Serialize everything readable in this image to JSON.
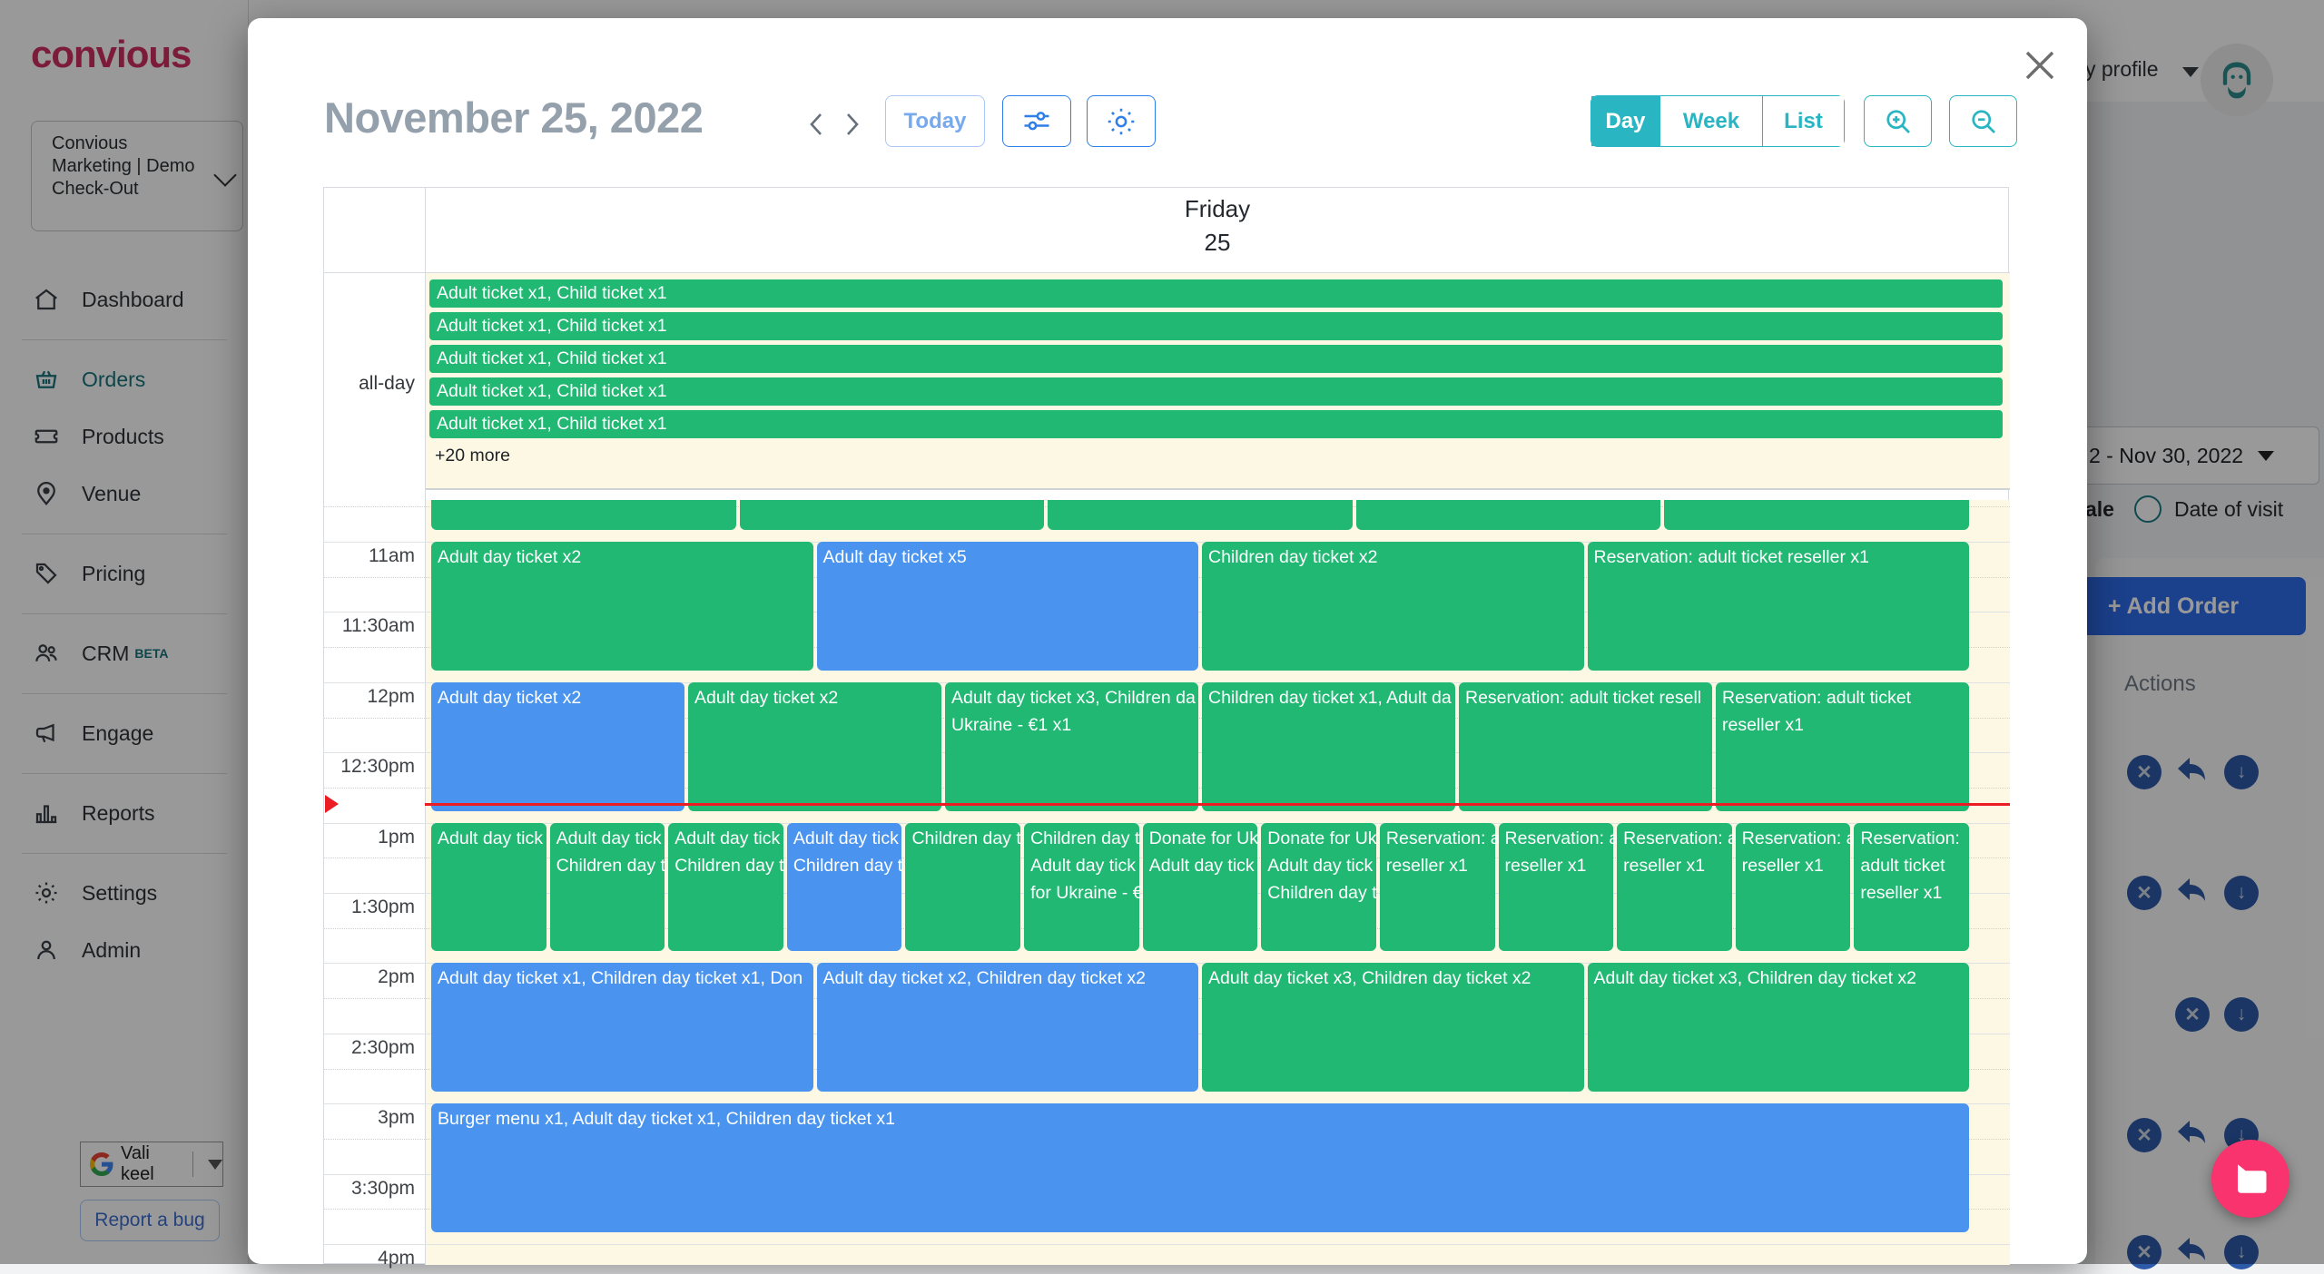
{
  "colors": {
    "accent_teal": "#2ab5c3",
    "sidebar_active_teal": "#17747e",
    "event_green": "#21b873",
    "event_blue": "#4a94ef",
    "now_red": "#ec1c24",
    "allday_bg": "#fdf8e3",
    "brand_crimson": "#cf2d62",
    "add_order_blue": "#2e6cea",
    "action_icon_blue": "#2d5ba9",
    "fab_pink": "#f8336e",
    "title_gray": "#94a0ab"
  },
  "sidebar": {
    "logo": "convious",
    "env_selector": {
      "lines": [
        "Convious",
        "Marketing | Demo",
        "Check-Out"
      ]
    },
    "items": [
      {
        "label": "Dashboard",
        "icon": "home-icon",
        "active": false,
        "divider_after": true
      },
      {
        "label": "Orders",
        "icon": "basket-icon",
        "active": true,
        "divider_after": false
      },
      {
        "label": "Products",
        "icon": "ticket-icon",
        "active": false,
        "divider_after": false
      },
      {
        "label": "Venue",
        "icon": "pin-icon",
        "active": false,
        "divider_after": true
      },
      {
        "label": "Pricing",
        "icon": "tag-icon",
        "active": false,
        "divider_after": true
      },
      {
        "label": "CRM",
        "badge": "BETA",
        "icon": "people-icon",
        "active": false,
        "divider_after": true
      },
      {
        "label": "Engage",
        "icon": "megaphone-icon",
        "active": false,
        "divider_after": true
      },
      {
        "label": "Reports",
        "icon": "chart-icon",
        "active": false,
        "divider_after": true
      },
      {
        "label": "Settings",
        "icon": "gear-icon",
        "active": false,
        "divider_after": false
      },
      {
        "label": "Admin",
        "icon": "person-icon",
        "active": false,
        "divider_after": false
      }
    ],
    "language_label": "Vali keel",
    "report_bug_label": "Report a bug"
  },
  "topbar": {
    "profile_label": "y profile"
  },
  "right_panel": {
    "date_range": "2 - Nov 30, 2022",
    "radio_fragment": "ale",
    "radio_label": "Date of visit",
    "add_order_label": "+ Add Order",
    "actions_header": "Actions",
    "action_rows": [
      {
        "icons": [
          {
            "type": "x",
            "col": 0
          },
          {
            "type": "undo",
            "col": 1
          },
          {
            "type": "down",
            "col": 2
          }
        ]
      },
      {
        "icons": [
          {
            "type": "x",
            "col": 0
          },
          {
            "type": "undo",
            "col": 1
          },
          {
            "type": "down",
            "col": 2
          }
        ]
      },
      {
        "icons": [
          {
            "type": "x",
            "col": 1
          },
          {
            "type": "down",
            "col": 2
          }
        ]
      },
      {
        "icons": [
          {
            "type": "x",
            "col": 0
          },
          {
            "type": "undo",
            "col": 1
          },
          {
            "type": "down",
            "col": 2
          }
        ]
      },
      {
        "icons": [
          {
            "type": "x",
            "col": 0
          },
          {
            "type": "undo",
            "col": 1
          },
          {
            "type": "down",
            "col": 2
          }
        ]
      }
    ]
  },
  "modal": {
    "title": "November 25, 2022",
    "today_label": "Today",
    "views": [
      {
        "label": "Day",
        "active": true
      },
      {
        "label": "Week",
        "active": false
      },
      {
        "label": "List",
        "active": false
      }
    ],
    "day_header": {
      "weekday": "Friday",
      "day": "25"
    },
    "calendar": {
      "all_day": {
        "label": "all-day",
        "events": [
          "Adult ticket x1, Child ticket x1",
          "Adult ticket x1, Child ticket x1",
          "Adult ticket x1, Child ticket x1",
          "Adult ticket x1, Child ticket x1",
          "Adult ticket x1, Child ticket x1"
        ],
        "more_label": "+20 more"
      },
      "time_labels": [
        {
          "time": "11:00",
          "label": "11am"
        },
        {
          "time": "11:30",
          "label": "11:30am"
        },
        {
          "time": "12:00",
          "label": "12pm"
        },
        {
          "time": "12:30",
          "label": "12:30pm"
        },
        {
          "time": "13:00",
          "label": "1pm"
        },
        {
          "time": "13:30",
          "label": "1:30pm"
        },
        {
          "time": "14:00",
          "label": "2pm"
        },
        {
          "time": "14:30",
          "label": "2:30pm"
        },
        {
          "time": "15:00",
          "label": "3pm"
        },
        {
          "time": "15:30",
          "label": "3:30pm"
        },
        {
          "time": "16:00",
          "label": "4pm"
        }
      ],
      "now_time": "12:52",
      "rows": [
        {
          "start": "10:00",
          "duration_min": 55,
          "clip_top": true,
          "events": [
            {
              "color": "green",
              "lines": []
            },
            {
              "color": "green",
              "lines": []
            },
            {
              "color": "green",
              "lines": []
            },
            {
              "color": "green",
              "lines": []
            },
            {
              "color": "green",
              "lines": []
            }
          ]
        },
        {
          "start": "11:00",
          "duration_min": 55,
          "clip_top": false,
          "events": [
            {
              "color": "green",
              "lines": [
                "Adult day ticket x2"
              ]
            },
            {
              "color": "blue",
              "lines": [
                "Adult day ticket x5"
              ]
            },
            {
              "color": "green",
              "lines": [
                "Children day ticket x2"
              ]
            },
            {
              "color": "green",
              "lines": [
                "Reservation: adult ticket reseller x1"
              ]
            }
          ]
        },
        {
          "start": "12:00",
          "duration_min": 55,
          "clip_top": false,
          "events": [
            {
              "color": "blue",
              "lines": [
                "Adult day ticket x2"
              ]
            },
            {
              "color": "green",
              "lines": [
                "Adult day ticket x2"
              ]
            },
            {
              "color": "green",
              "lines": [
                "Adult day ticket x3, Children da",
                "Ukraine - €1 x1"
              ]
            },
            {
              "color": "green",
              "lines": [
                "Children day ticket x1, Adult da"
              ]
            },
            {
              "color": "green",
              "lines": [
                "Reservation: adult ticket resell"
              ]
            },
            {
              "color": "green",
              "lines": [
                "Reservation: adult ticket",
                "reseller x1"
              ]
            }
          ]
        },
        {
          "start": "13:00",
          "duration_min": 55,
          "clip_top": false,
          "events": [
            {
              "color": "green",
              "lines": [
                "Adult day tick"
              ]
            },
            {
              "color": "green",
              "lines": [
                "Adult day tick",
                "Children day t"
              ]
            },
            {
              "color": "green",
              "lines": [
                "Adult day tick",
                "Children day t"
              ]
            },
            {
              "color": "blue",
              "lines": [
                "Adult day tick",
                "Children day t"
              ]
            },
            {
              "color": "green",
              "lines": [
                "Children day t"
              ]
            },
            {
              "color": "green",
              "lines": [
                "Children day t",
                "Adult day tick",
                "for Ukraine - €"
              ]
            },
            {
              "color": "green",
              "lines": [
                "Donate for Uk",
                "Adult day tick"
              ]
            },
            {
              "color": "green",
              "lines": [
                "Donate for Uk",
                "Adult day tick",
                "Children day t"
              ]
            },
            {
              "color": "green",
              "lines": [
                "Reservation: a",
                "reseller x1"
              ]
            },
            {
              "color": "green",
              "lines": [
                "Reservation: a",
                "reseller x1"
              ]
            },
            {
              "color": "green",
              "lines": [
                "Reservation: a",
                "reseller x1"
              ]
            },
            {
              "color": "green",
              "lines": [
                "Reservation: a",
                "reseller x1"
              ]
            },
            {
              "color": "green",
              "lines": [
                "Reservation:",
                "adult ticket",
                "reseller x1"
              ]
            }
          ]
        },
        {
          "start": "14:00",
          "duration_min": 55,
          "clip_top": false,
          "events": [
            {
              "color": "blue",
              "lines": [
                "Adult day ticket x1, Children day ticket x1, Don"
              ]
            },
            {
              "color": "blue",
              "lines": [
                "Adult day ticket x2, Children day ticket x2"
              ]
            },
            {
              "color": "green",
              "lines": [
                "Adult day ticket x3, Children day ticket x2"
              ]
            },
            {
              "color": "green",
              "lines": [
                "Adult day ticket x3, Children day ticket x2"
              ]
            }
          ]
        },
        {
          "start": "15:00",
          "duration_min": 55,
          "clip_top": false,
          "events": [
            {
              "color": "blue",
              "lines": [
                "Burger menu x1, Adult day ticket x1, Children day ticket x1"
              ]
            }
          ]
        }
      ]
    }
  },
  "fab": {
    "icon": "chat-bubble-icon"
  }
}
